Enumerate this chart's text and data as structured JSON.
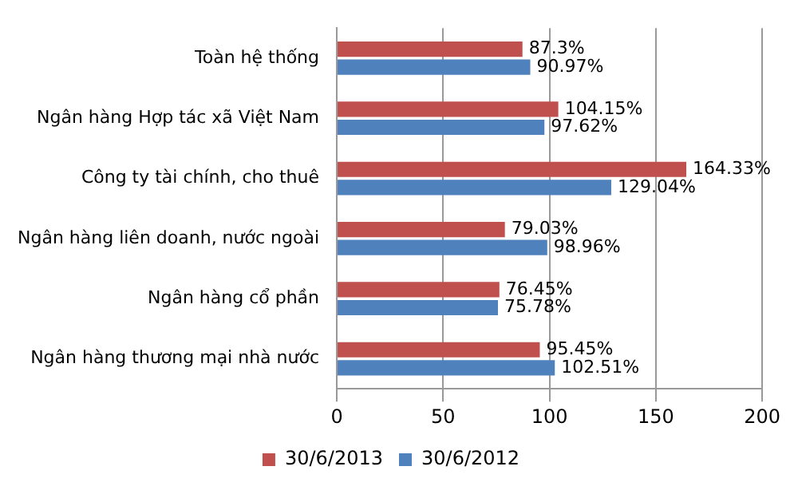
{
  "chart_data": {
    "type": "bar",
    "orientation": "horizontal",
    "categories": [
      "Toàn hệ thống",
      "Ngân hàng Hợp tác xã Việt Nam",
      "Công ty tài chính, cho thuê",
      "Ngân hàng liên doanh, nước ngoài",
      "Ngân hàng cổ phần",
      "Ngân hàng thương mại nhà nước"
    ],
    "series": [
      {
        "name": "30/6/2013",
        "color": "#c0504d",
        "values": [
          87.3,
          104.15,
          164.33,
          79.03,
          76.45,
          95.45
        ],
        "value_labels": [
          "87.3%",
          "104.15%",
          "164.33%",
          "79.03%",
          "76.45%",
          "95.45%"
        ]
      },
      {
        "name": "30/6/2012",
        "color": "#4f81bd",
        "values": [
          90.97,
          97.62,
          129.04,
          98.96,
          75.78,
          102.51
        ],
        "value_labels": [
          "90.97%",
          "97.62%",
          "129.04%",
          "98.96%",
          "75.78%",
          "102.51%"
        ]
      }
    ],
    "xlim": [
      0,
      200
    ],
    "xticks": [
      0,
      50,
      100,
      150,
      200
    ],
    "grid": "x",
    "legend": "bottom"
  }
}
